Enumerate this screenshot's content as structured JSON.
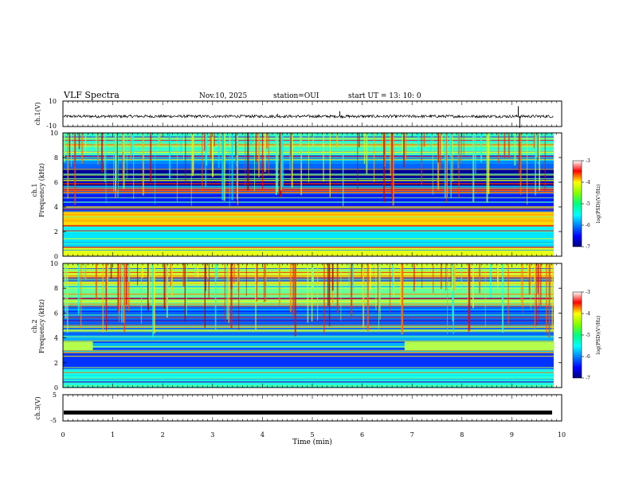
{
  "header": {
    "title": "VLF Spectra",
    "date": "Nov.10, 2025",
    "station": "station=OUI",
    "start": "start  UT =   13: 10: 0"
  },
  "chart_data": [
    {
      "type": "line",
      "panel": "ch1-waveform",
      "ylabel": "ch.1(V)",
      "ytick_labels": [
        "10",
        "-10"
      ],
      "ylim": [
        -10,
        10
      ],
      "xlim": [
        0,
        10
      ],
      "series_note": "noisy trace around -2 V with occasional spikes",
      "baseline_v": -2
    },
    {
      "type": "heatmap",
      "panel": "ch1-spectrogram",
      "ylabel": "ch.1 Frequency (kHz)",
      "ytick_labels": [
        "0",
        "2",
        "4",
        "6",
        "8",
        "10"
      ],
      "ylim": [
        0,
        10
      ],
      "xlim": [
        0,
        10
      ],
      "colorbar": {
        "label": "log(PSD)(V²/Hz)",
        "tick_labels": [
          "-3",
          "-4",
          "-5",
          "-6",
          "-7"
        ],
        "range": [
          -7,
          -3
        ]
      },
      "bands_khz": [
        {
          "from": 0,
          "to": 0.7,
          "level": -4.6
        },
        {
          "from": 0.7,
          "to": 2.4,
          "level": -5.6
        },
        {
          "from": 2.4,
          "to": 3.6,
          "level": -4.3
        },
        {
          "from": 3.6,
          "to": 5.6,
          "level": -6.4
        },
        {
          "from": 5.6,
          "to": 7.0,
          "level": -6.9
        },
        {
          "from": 7.0,
          "to": 8.2,
          "level": -6.1
        },
        {
          "from": 8.2,
          "to": 10,
          "level": -5.3
        }
      ]
    },
    {
      "type": "heatmap",
      "panel": "ch2-spectrogram",
      "ylabel": "ch.2 Frequency (kHz)",
      "ytick_labels": [
        "0",
        "2",
        "4",
        "6",
        "8",
        "10"
      ],
      "ylim": [
        0,
        10
      ],
      "xlim": [
        0,
        10
      ],
      "colorbar": {
        "label": "log(PSD)(V²/Hz)",
        "tick_labels": [
          "-3",
          "-4",
          "-5",
          "-6",
          "-7"
        ],
        "range": [
          -7,
          -3
        ]
      },
      "bands_khz": [
        {
          "from": 0,
          "to": 1.5,
          "level": -5.4
        },
        {
          "from": 1.5,
          "to": 3.2,
          "level": -6.3
        },
        {
          "from": 3.2,
          "to": 4.2,
          "level": -5.8
        },
        {
          "from": 4.2,
          "to": 6.6,
          "level": -6.1
        },
        {
          "from": 6.6,
          "to": 8.2,
          "level": -5.1
        },
        {
          "from": 8.2,
          "to": 10,
          "level": -4.7
        }
      ]
    },
    {
      "type": "line",
      "panel": "ch3-level",
      "ylabel": "ch.3(V)",
      "ytick_labels": [
        "5",
        "-5"
      ],
      "ylim": [
        -5,
        5
      ],
      "xlim": [
        0,
        10
      ],
      "constant_v": -1.8
    }
  ],
  "xaxis": {
    "label": "Time  (min)",
    "tick_labels": [
      "0",
      "1",
      "2",
      "3",
      "4",
      "5",
      "6",
      "7",
      "8",
      "9",
      "10"
    ]
  },
  "colors": {
    "jet_low": "#000080",
    "jet_mid": "#00ff80",
    "jet_high": "#ff0000"
  }
}
